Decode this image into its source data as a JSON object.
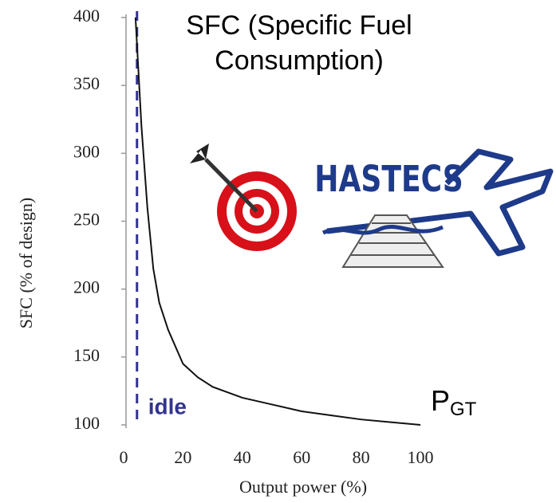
{
  "chart_data": {
    "type": "line",
    "title": "SFC (Specific Fuel Consumption)",
    "x_label": "Output power (%)",
    "y_label": "SFC (% of design)",
    "x": [
      4,
      5,
      6,
      8,
      10,
      12,
      15,
      20,
      25,
      30,
      40,
      50,
      60,
      70,
      80,
      90,
      100
    ],
    "series": [
      {
        "color": "#111111",
        "values": [
          400,
          360,
          320,
          260,
          215,
          190,
          170,
          145,
          135,
          128,
          120,
          115,
          110,
          107,
          104,
          102,
          100
        ]
      }
    ],
    "xlim": [
      0,
      100
    ],
    "ylim": [
      100,
      400
    ],
    "xticks": [
      0,
      20,
      40,
      60,
      80,
      100
    ],
    "yticks": [
      100,
      150,
      200,
      250,
      300,
      350,
      400
    ],
    "idle": {
      "x": 4.5,
      "label": "idle",
      "color": "#33338f"
    },
    "power_label": {
      "main": "P",
      "sub": "GT"
    },
    "logo_text": "HASTECS"
  }
}
